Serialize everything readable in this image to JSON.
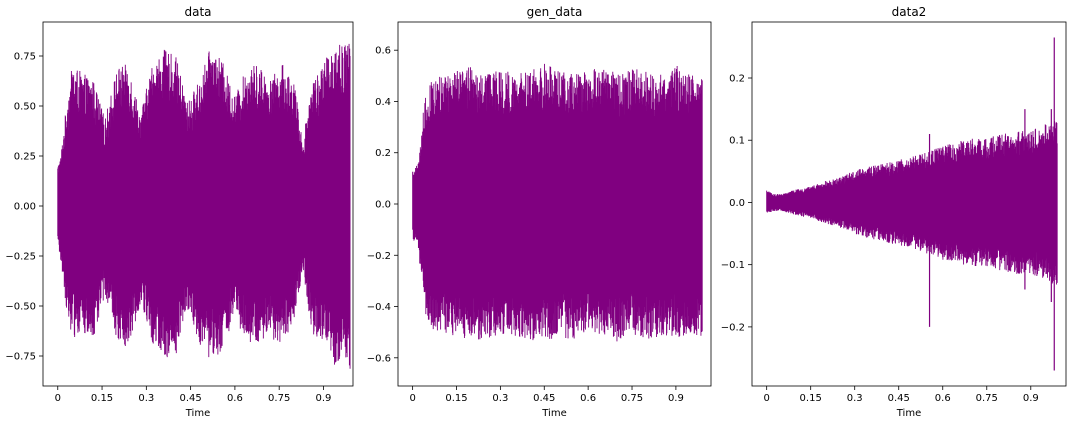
{
  "chart_data": [
    {
      "type": "line",
      "title": "data",
      "xlabel": "Time",
      "ylabel": "",
      "color": "#800080",
      "xlim": [
        -0.05,
        1.0
      ],
      "ylim": [
        -0.9,
        0.92
      ],
      "xticks": [
        0,
        0.15,
        0.3,
        0.45,
        0.6,
        0.75,
        0.9
      ],
      "xtick_labels": [
        "0",
        "0.15",
        "0.3",
        "0.45",
        "0.6",
        "0.75",
        "0.9"
      ],
      "yticks": [
        -0.75,
        -0.5,
        -0.25,
        0.0,
        0.25,
        0.5,
        0.75
      ],
      "ytick_labels": [
        "−0.75",
        "−0.50",
        "−0.25",
        "0.00",
        "0.25",
        "0.50",
        "0.75"
      ],
      "envelope": {
        "x": [
          0,
          0.01,
          0.03,
          0.05,
          0.08,
          0.12,
          0.16,
          0.2,
          0.24,
          0.28,
          0.32,
          0.36,
          0.4,
          0.44,
          0.48,
          0.52,
          0.56,
          0.6,
          0.64,
          0.68,
          0.72,
          0.76,
          0.8,
          0.83,
          0.86,
          0.9,
          0.94,
          0.97,
          0.99
        ],
        "upper": [
          0.18,
          0.22,
          0.45,
          0.62,
          0.58,
          0.55,
          0.38,
          0.6,
          0.62,
          0.4,
          0.62,
          0.68,
          0.65,
          0.45,
          0.55,
          0.7,
          0.62,
          0.48,
          0.6,
          0.62,
          0.55,
          0.62,
          0.55,
          0.28,
          0.55,
          0.62,
          0.72,
          0.7,
          0.75
        ],
        "lower": [
          -0.18,
          -0.24,
          -0.45,
          -0.58,
          -0.55,
          -0.6,
          -0.38,
          -0.58,
          -0.62,
          -0.42,
          -0.6,
          -0.66,
          -0.65,
          -0.45,
          -0.6,
          -0.68,
          -0.62,
          -0.48,
          -0.62,
          -0.6,
          -0.58,
          -0.6,
          -0.5,
          -0.28,
          -0.55,
          -0.6,
          -0.72,
          -0.65,
          -0.72
        ]
      }
    },
    {
      "type": "line",
      "title": "gen_data",
      "xlabel": "Time",
      "ylabel": "",
      "color": "#800080",
      "xlim": [
        -0.05,
        1.02
      ],
      "ylim": [
        -0.71,
        0.71
      ],
      "xticks": [
        0,
        0.15,
        0.3,
        0.45,
        0.6,
        0.75,
        0.9
      ],
      "xtick_labels": [
        "0",
        "0.15",
        "0.3",
        "0.45",
        "0.6",
        "0.75",
        "0.9"
      ],
      "yticks": [
        -0.6,
        -0.4,
        -0.2,
        0.0,
        0.2,
        0.4,
        0.6
      ],
      "ytick_labels": [
        "−0.6",
        "−0.4",
        "−0.2",
        "0.0",
        "0.2",
        "0.4",
        "0.6"
      ],
      "envelope": {
        "x": [
          0,
          0.02,
          0.04,
          0.06,
          0.1,
          0.15,
          0.2,
          0.25,
          0.3,
          0.35,
          0.4,
          0.45,
          0.5,
          0.55,
          0.6,
          0.65,
          0.7,
          0.75,
          0.8,
          0.85,
          0.9,
          0.95,
          0.99
        ],
        "upper": [
          0.12,
          0.14,
          0.35,
          0.42,
          0.44,
          0.45,
          0.47,
          0.45,
          0.46,
          0.44,
          0.45,
          0.48,
          0.46,
          0.44,
          0.45,
          0.47,
          0.44,
          0.46,
          0.45,
          0.44,
          0.47,
          0.45,
          0.44
        ],
        "lower": [
          -0.12,
          -0.16,
          -0.36,
          -0.42,
          -0.44,
          -0.46,
          -0.45,
          -0.47,
          -0.44,
          -0.45,
          -0.46,
          -0.48,
          -0.45,
          -0.46,
          -0.44,
          -0.45,
          -0.47,
          -0.44,
          -0.46,
          -0.45,
          -0.46,
          -0.44,
          -0.45
        ]
      }
    },
    {
      "type": "line",
      "title": "data2",
      "xlabel": "Time",
      "ylabel": "",
      "color": "#800080",
      "xlim": [
        -0.05,
        1.02
      ],
      "ylim": [
        -0.295,
        0.29
      ],
      "xticks": [
        0,
        0.15,
        0.3,
        0.45,
        0.6,
        0.75,
        0.9
      ],
      "xtick_labels": [
        "0",
        "0.15",
        "0.3",
        "0.45",
        "0.6",
        "0.75",
        "0.9"
      ],
      "yticks": [
        -0.2,
        -0.1,
        0.0,
        0.1,
        0.2
      ],
      "ytick_labels": [
        "−0.2",
        "−0.1",
        "0.0",
        "0.1",
        "0.2"
      ],
      "envelope": {
        "x": [
          0,
          0.02,
          0.05,
          0.1,
          0.15,
          0.2,
          0.25,
          0.3,
          0.35,
          0.4,
          0.45,
          0.5,
          0.55,
          0.6,
          0.65,
          0.7,
          0.75,
          0.8,
          0.85,
          0.9,
          0.95,
          0.99
        ],
        "upper": [
          0.018,
          0.012,
          0.012,
          0.018,
          0.022,
          0.03,
          0.035,
          0.045,
          0.05,
          0.055,
          0.06,
          0.065,
          0.072,
          0.08,
          0.085,
          0.09,
          0.092,
          0.095,
          0.1,
          0.1,
          0.11,
          0.12
        ],
        "lower": [
          -0.018,
          -0.012,
          -0.012,
          -0.018,
          -0.022,
          -0.03,
          -0.035,
          -0.045,
          -0.05,
          -0.055,
          -0.06,
          -0.065,
          -0.072,
          -0.08,
          -0.085,
          -0.09,
          -0.092,
          -0.095,
          -0.1,
          -0.1,
          -0.11,
          -0.12
        ]
      },
      "spikes": [
        [
          0.555,
          0.11,
          -0.2
        ],
        [
          0.98,
          0.265,
          -0.27
        ],
        [
          0.97,
          0.15,
          -0.16
        ],
        [
          0.88,
          0.15,
          -0.14
        ]
      ]
    }
  ]
}
